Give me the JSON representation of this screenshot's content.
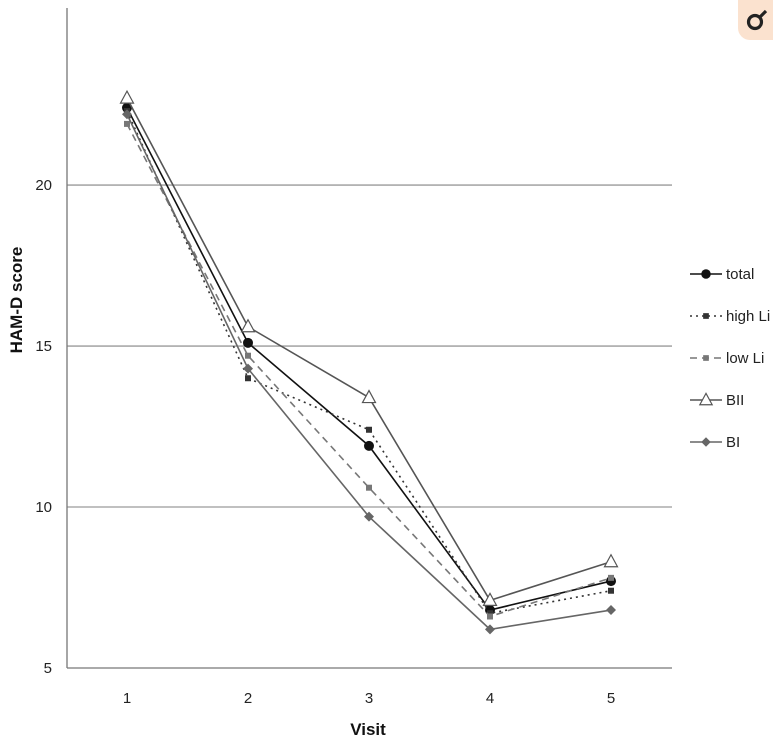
{
  "chart_data": {
    "type": "line",
    "title": "",
    "xlabel": "Visit",
    "ylabel": "HAM-D score",
    "categories": [
      "1",
      "2",
      "3",
      "4",
      "5"
    ],
    "yticks": [
      5,
      10,
      15,
      20
    ],
    "ylim": [
      5,
      25.5
    ],
    "grid": "horizontal",
    "legend_position": "right",
    "series": [
      {
        "name": "total",
        "values": [
          22.4,
          15.1,
          11.9,
          6.8,
          7.7
        ],
        "marker": "circle",
        "dash": "solid",
        "color": "#111111"
      },
      {
        "name": "high Li",
        "values": [
          22.3,
          14.0,
          12.4,
          6.7,
          7.4
        ],
        "marker": "square",
        "dash": "dotted",
        "color": "#333333"
      },
      {
        "name": "low Li",
        "values": [
          21.9,
          14.7,
          10.6,
          6.6,
          7.8
        ],
        "marker": "square",
        "dash": "dashed",
        "color": "#777777"
      },
      {
        "name": "BII",
        "values": [
          22.7,
          15.6,
          13.4,
          7.1,
          8.3
        ],
        "marker": "triangle",
        "dash": "solid",
        "color": "#555555"
      },
      {
        "name": "BI",
        "values": [
          22.2,
          14.3,
          9.7,
          6.2,
          6.8
        ],
        "marker": "diamond",
        "dash": "solid",
        "color": "#666666"
      }
    ]
  },
  "corner_icon": "gender-symbol-icon",
  "corner_color": "#fbe2cf"
}
